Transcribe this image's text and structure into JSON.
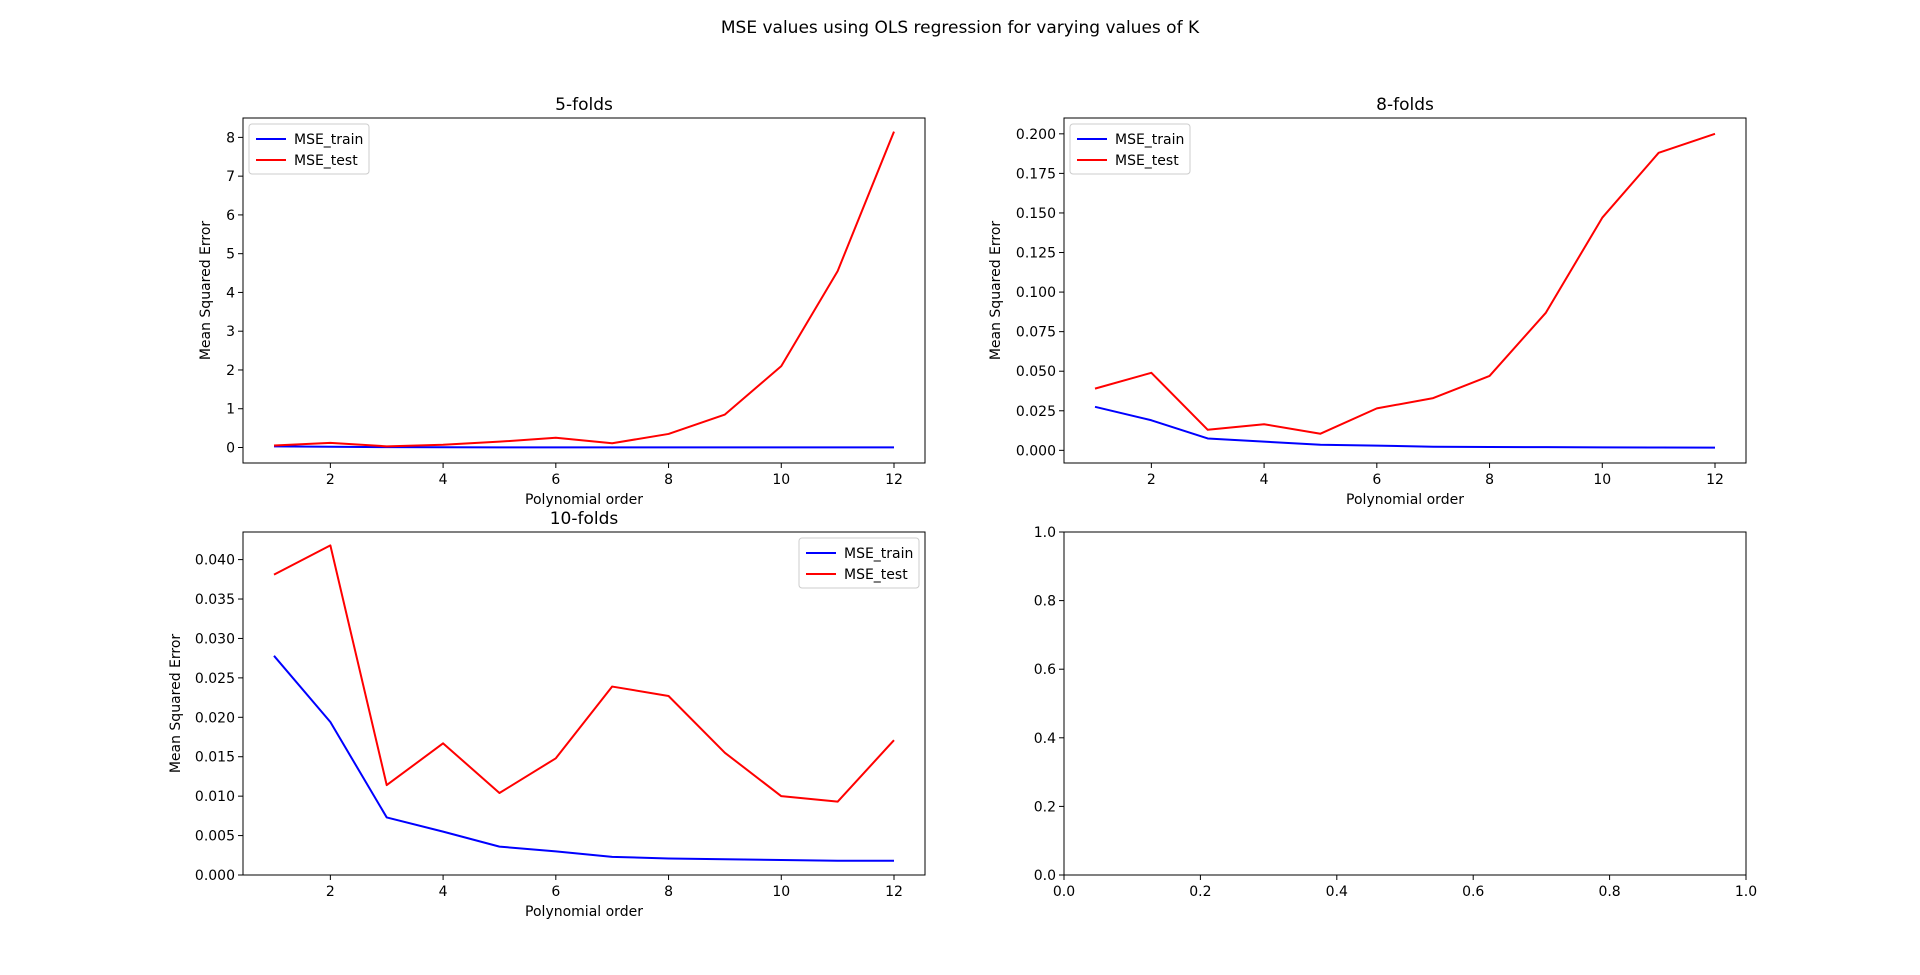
{
  "figure": {
    "suptitle": "MSE values using OLS regression for varying values of K"
  },
  "chart_data": [
    {
      "type": "line",
      "title": "5-folds",
      "xlabel": "Polynomial order",
      "ylabel": "Mean Squared Error",
      "xlim": [
        0.45,
        12.55
      ],
      "ylim": [
        -0.4,
        8.5
      ],
      "xticks": [
        2,
        4,
        6,
        8,
        10,
        12
      ],
      "xtick_labels": [
        "2",
        "4",
        "6",
        "8",
        "10",
        "12"
      ],
      "yticks": [
        0,
        1,
        2,
        3,
        4,
        5,
        6,
        7,
        8
      ],
      "ytick_labels": [
        "0",
        "1",
        "2",
        "3",
        "4",
        "5",
        "6",
        "7",
        "8"
      ],
      "legend_position": "upper left",
      "grid": false,
      "x": [
        1,
        2,
        3,
        4,
        5,
        6,
        7,
        8,
        9,
        10,
        11,
        12
      ],
      "series": [
        {
          "name": "MSE_train",
          "color": "#0000ff",
          "values": [
            0.028,
            0.02,
            0.008,
            0.006,
            0.004,
            0.003,
            0.002,
            0.002,
            0.002,
            0.002,
            0.002,
            0.002
          ]
        },
        {
          "name": "MSE_test",
          "color": "#ff0000",
          "values": [
            0.05,
            0.12,
            0.03,
            0.07,
            0.15,
            0.25,
            0.11,
            0.35,
            0.85,
            2.1,
            4.55,
            8.15
          ]
        }
      ]
    },
    {
      "type": "line",
      "title": "8-folds",
      "xlabel": "Polynomial order",
      "ylabel": "Mean Squared Error",
      "xlim": [
        0.45,
        12.55
      ],
      "ylim": [
        -0.008,
        0.21
      ],
      "xticks": [
        2,
        4,
        6,
        8,
        10,
        12
      ],
      "xtick_labels": [
        "2",
        "4",
        "6",
        "8",
        "10",
        "12"
      ],
      "yticks": [
        0,
        0.025,
        0.05,
        0.075,
        0.1,
        0.125,
        0.15,
        0.175,
        0.2
      ],
      "ytick_labels": [
        "0.000",
        "0.025",
        "0.050",
        "0.075",
        "0.100",
        "0.125",
        "0.150",
        "0.175",
        "0.200"
      ],
      "legend_position": "upper left",
      "grid": false,
      "x": [
        1,
        2,
        3,
        4,
        5,
        6,
        7,
        8,
        9,
        10,
        11,
        12
      ],
      "series": [
        {
          "name": "MSE_train",
          "color": "#0000ff",
          "values": [
            0.0275,
            0.019,
            0.0075,
            0.0055,
            0.0035,
            0.003,
            0.0023,
            0.0021,
            0.002,
            0.0019,
            0.0018,
            0.0017
          ]
        },
        {
          "name": "MSE_test",
          "color": "#ff0000",
          "values": [
            0.039,
            0.049,
            0.013,
            0.0165,
            0.0105,
            0.0265,
            0.033,
            0.047,
            0.087,
            0.147,
            0.188,
            0.2
          ]
        }
      ]
    },
    {
      "type": "line",
      "title": "10-folds",
      "xlabel": "Polynomial order",
      "ylabel": "Mean Squared Error",
      "xlim": [
        0.45,
        12.55
      ],
      "ylim": [
        0,
        0.0435
      ],
      "xticks": [
        2,
        4,
        6,
        8,
        10,
        12
      ],
      "xtick_labels": [
        "2",
        "4",
        "6",
        "8",
        "10",
        "12"
      ],
      "yticks": [
        0,
        0.005,
        0.01,
        0.015,
        0.02,
        0.025,
        0.03,
        0.035,
        0.04
      ],
      "ytick_labels": [
        "0.000",
        "0.005",
        "0.010",
        "0.015",
        "0.020",
        "0.025",
        "0.030",
        "0.035",
        "0.040"
      ],
      "legend_position": "upper right",
      "grid": false,
      "x": [
        1,
        2,
        3,
        4,
        5,
        6,
        7,
        8,
        9,
        10,
        11,
        12
      ],
      "series": [
        {
          "name": "MSE_train",
          "color": "#0000ff",
          "values": [
            0.0278,
            0.0194,
            0.0073,
            0.0055,
            0.0036,
            0.003,
            0.0023,
            0.0021,
            0.002,
            0.0019,
            0.0018,
            0.0018
          ]
        },
        {
          "name": "MSE_test",
          "color": "#ff0000",
          "values": [
            0.0381,
            0.0418,
            0.0114,
            0.0167,
            0.0104,
            0.0148,
            0.0239,
            0.0227,
            0.0155,
            0.01,
            0.0093,
            0.0171
          ]
        }
      ]
    },
    {
      "type": "line",
      "title": "",
      "xlabel": "",
      "ylabel": "",
      "xlim": [
        0,
        1
      ],
      "ylim": [
        0,
        1
      ],
      "xticks": [
        0,
        0.2,
        0.4,
        0.6,
        0.8,
        1.0
      ],
      "xtick_labels": [
        "0.0",
        "0.2",
        "0.4",
        "0.6",
        "0.8",
        "1.0"
      ],
      "yticks": [
        0,
        0.2,
        0.4,
        0.6,
        0.8,
        1.0
      ],
      "ytick_labels": [
        "0.0",
        "0.2",
        "0.4",
        "0.6",
        "0.8",
        "1.0"
      ],
      "grid": false,
      "x": [],
      "series": []
    }
  ]
}
